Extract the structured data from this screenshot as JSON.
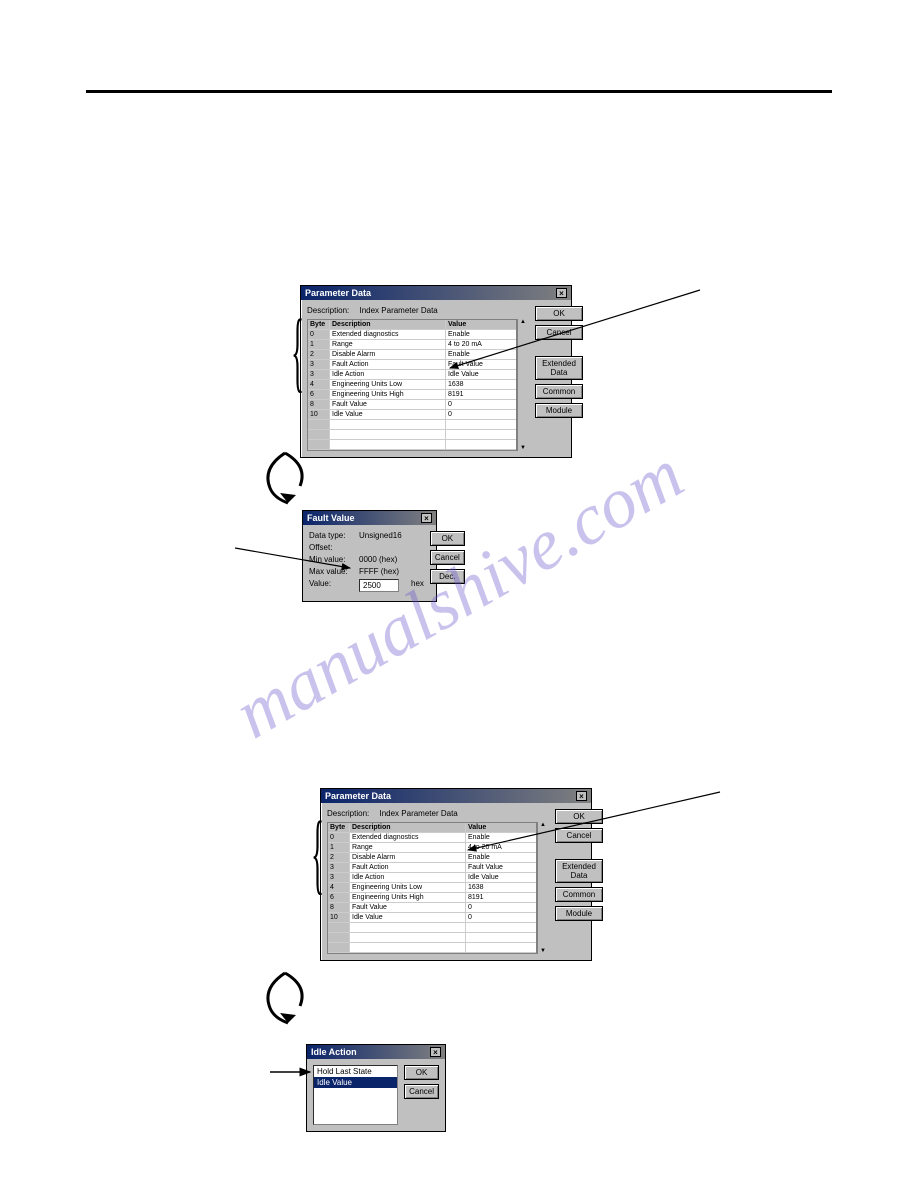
{
  "watermark": "manualshive.com",
  "dialog1": {
    "title": "Parameter Data",
    "description": "Description:",
    "desc_value": "Index Parameter Data",
    "columns": [
      "Byte",
      "Description",
      "Value"
    ],
    "rows": [
      [
        "0",
        "Extended diagnostics",
        "Enable"
      ],
      [
        "1",
        "Range",
        "4 to 20 mA"
      ],
      [
        "2",
        "Disable Alarm",
        "Enable"
      ],
      [
        "3",
        "Fault Action",
        "Fault Value"
      ],
      [
        "3",
        "Idle Action",
        "Idle Value"
      ],
      [
        "4",
        "Engineering Units Low",
        "1638"
      ],
      [
        "6",
        "Engineering Units High",
        "8191"
      ],
      [
        "8",
        "Fault Value",
        "0"
      ],
      [
        "10",
        "Idle Value",
        "0"
      ]
    ],
    "buttons": {
      "ok": "OK",
      "cancel": "Cancel",
      "ext": "Extended Data",
      "cmn": "Common",
      "mod": "Module"
    }
  },
  "dialog2": {
    "title": "Fault Value",
    "datatype_label": "Data type:",
    "datatype": "Unsigned16",
    "offset_label": "Offset:",
    "offset": "",
    "min_label": "Min value:",
    "min": "0000 (hex)",
    "max_label": "Max value:",
    "max": "FFFF (hex)",
    "value_label": "Value:",
    "value": "2500",
    "value_suffix": "hex",
    "buttons": {
      "ok": "OK",
      "cancel": "Cancel",
      "dec": "Dec."
    }
  },
  "dialog3": {
    "title": "Parameter Data",
    "description": "Description:",
    "desc_value": "Index Parameter Data",
    "columns": [
      "Byte",
      "Description",
      "Value"
    ],
    "rows": [
      [
        "0",
        "Extended diagnostics",
        "Enable"
      ],
      [
        "1",
        "Range",
        "4 to 20 mA"
      ],
      [
        "2",
        "Disable Alarm",
        "Enable"
      ],
      [
        "3",
        "Fault Action",
        "Fault Value"
      ],
      [
        "3",
        "Idle Action",
        "Idle Value"
      ],
      [
        "4",
        "Engineering Units Low",
        "1638"
      ],
      [
        "6",
        "Engineering Units High",
        "8191"
      ],
      [
        "8",
        "Fault Value",
        "0"
      ],
      [
        "10",
        "Idle Value",
        "0"
      ]
    ],
    "buttons": {
      "ok": "OK",
      "cancel": "Cancel",
      "ext": "Extended Data",
      "cmn": "Common",
      "mod": "Module"
    }
  },
  "dialog4": {
    "title": "Idle Action",
    "options": [
      "Hold Last State",
      "Idle Value"
    ],
    "selected_index": 1,
    "buttons": {
      "ok": "OK",
      "cancel": "Cancel"
    }
  }
}
